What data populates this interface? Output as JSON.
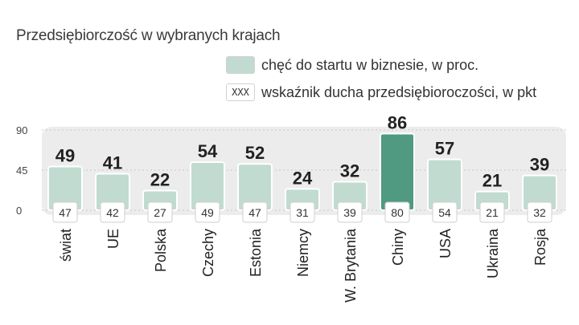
{
  "title": "Przedsiębiorczość w wybranych krajach",
  "legend": {
    "series1_label": "chęć do startu w biznesie, w proc.",
    "series2_swatch_text": "XXX",
    "series2_label": "wskaźnik ducha przedsiębioroczości, w pkt"
  },
  "colors": {
    "bar": "#c1dbd1",
    "bar_highlight": "#4f9a80",
    "panel": "#ececec",
    "grid": "#c9c9c9"
  },
  "chart_data": {
    "type": "bar",
    "title": "Przedsiębiorczość w wybranych krajach",
    "categories": [
      "świat",
      "UE",
      "Polska",
      "Czechy",
      "Estonia",
      "Niemcy",
      "W. Brytania",
      "Chiny",
      "USA",
      "Ukraina",
      "Rosja"
    ],
    "series": [
      {
        "name": "chęć do startu w biznesie, w proc.",
        "values": [
          49,
          41,
          22,
          54,
          52,
          24,
          32,
          86,
          57,
          21,
          39
        ]
      },
      {
        "name": "wskaźnik ducha przedsiębioroczości, w pkt",
        "values": [
          47,
          42,
          27,
          49,
          47,
          31,
          39,
          80,
          54,
          21,
          32
        ]
      }
    ],
    "highlight": "Chiny",
    "yticks": [
      0,
      45,
      90
    ],
    "ylim": [
      0,
      90
    ],
    "grid": true,
    "xlabel": "",
    "ylabel": ""
  }
}
